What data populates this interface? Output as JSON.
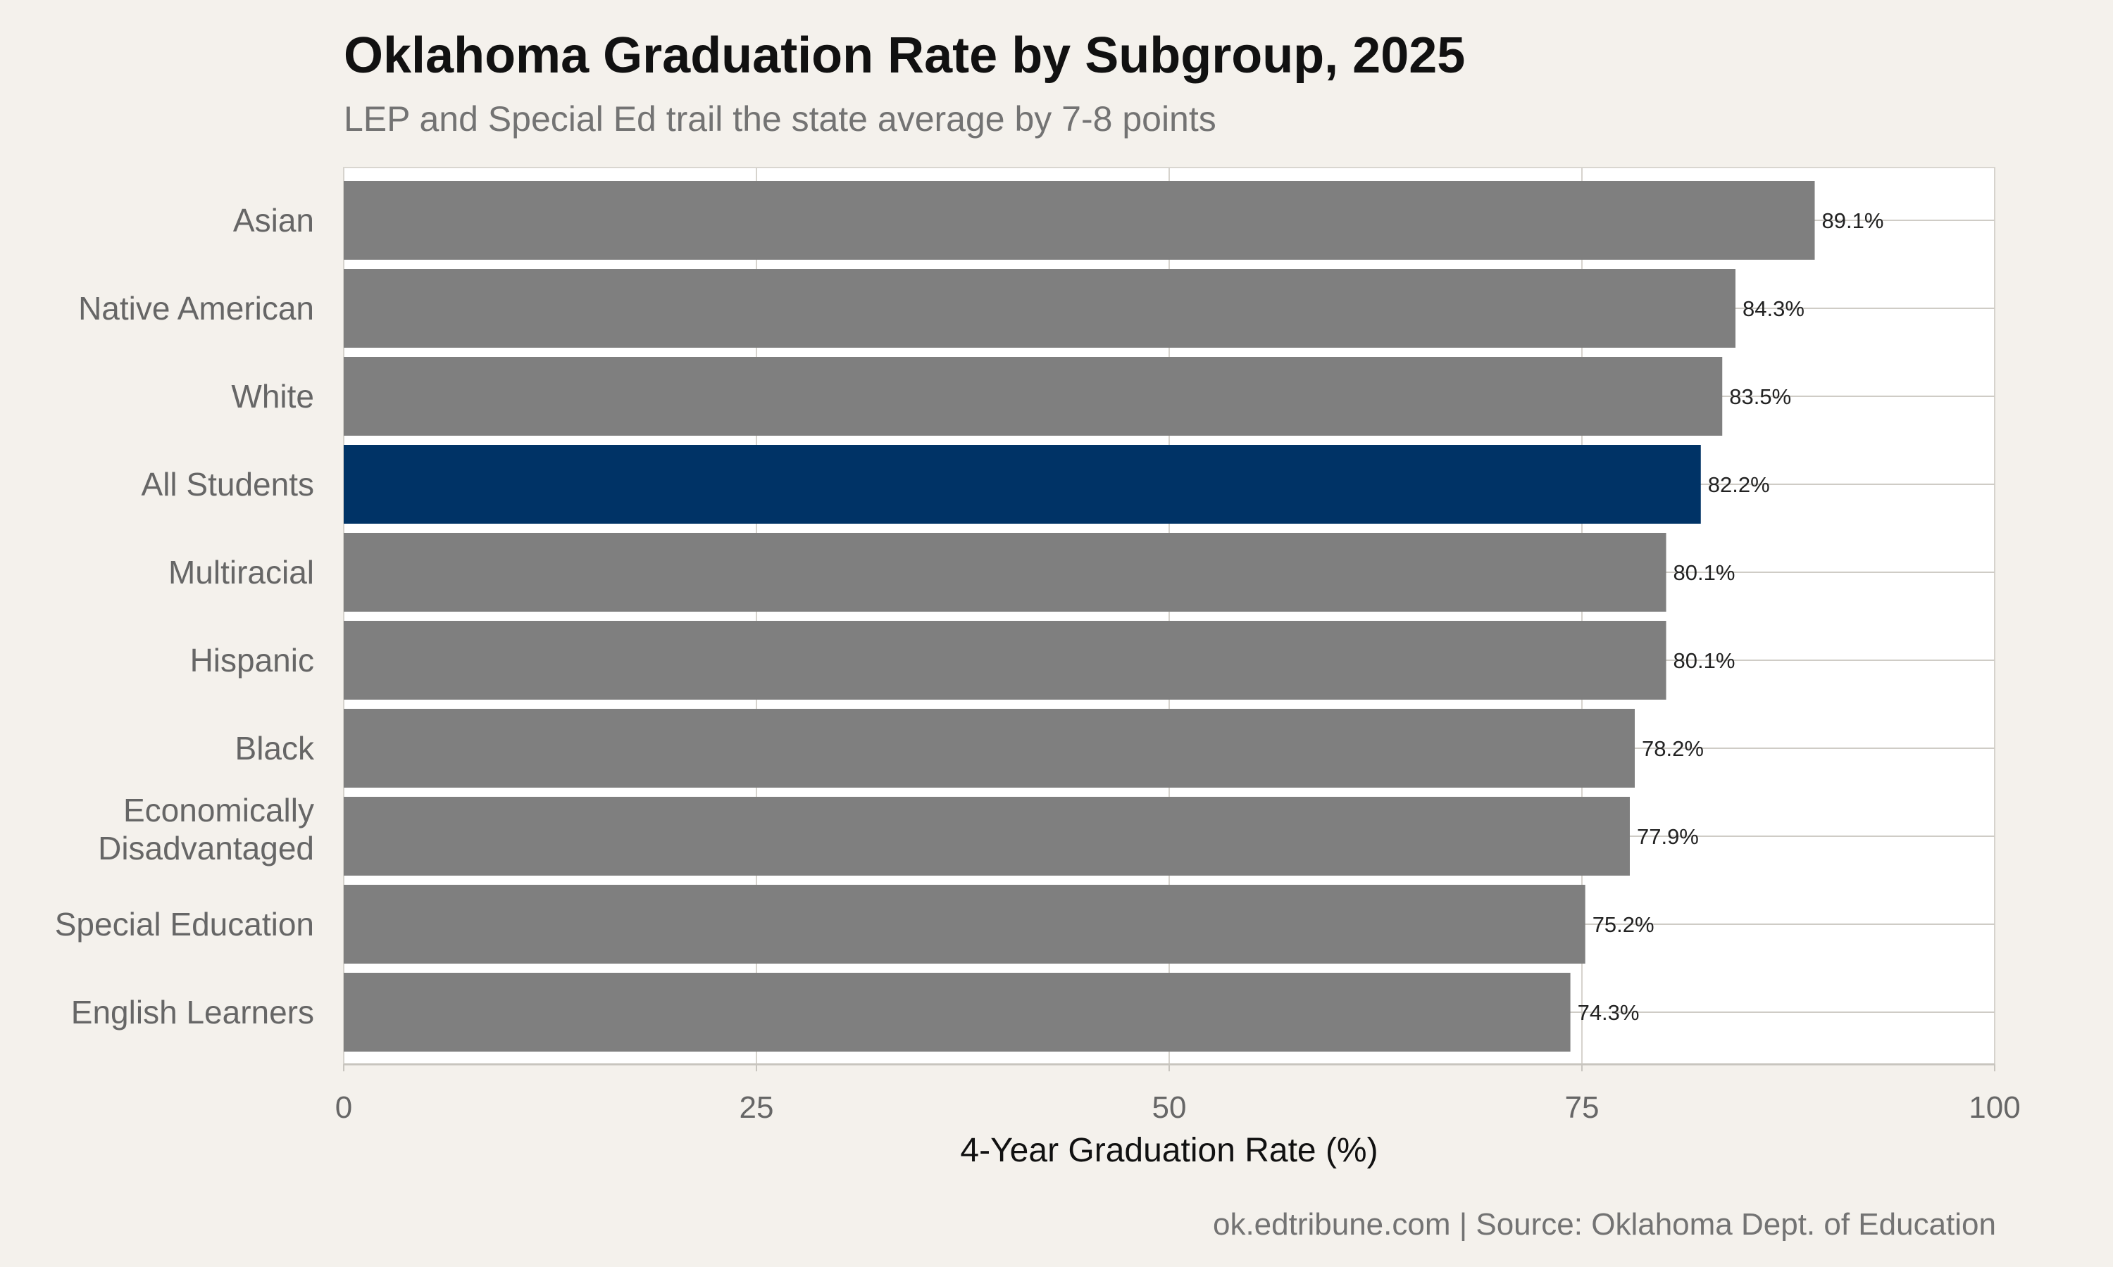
{
  "chart_data": {
    "type": "bar",
    "orientation": "horizontal",
    "title": "Oklahoma Graduation Rate by Subgroup, 2025",
    "subtitle": "LEP and Special Ed trail the state average by 7-8 points",
    "xlabel": "4-Year Graduation Rate (%)",
    "ylabel": "",
    "xlim": [
      0,
      100
    ],
    "xticks": [
      "0",
      "25",
      "50",
      "75",
      "100"
    ],
    "categories": [
      "Asian",
      "Native American",
      "White",
      "All Students",
      "Multiracial",
      "Hispanic",
      "Black",
      "Economically Disadvantaged",
      "Special Education",
      "English Learners"
    ],
    "values": [
      89.1,
      84.3,
      83.5,
      82.2,
      80.1,
      80.1,
      78.2,
      77.9,
      75.2,
      74.3
    ],
    "labels": [
      "89.1%",
      "84.3%",
      "83.5%",
      "82.2%",
      "80.1%",
      "80.1%",
      "78.2%",
      "77.9%",
      "75.2%",
      "74.3%"
    ],
    "highlight": "All Students",
    "colors": {
      "default": "#7f7f7f",
      "highlight": "#003366"
    },
    "grid": true,
    "legend": "none"
  },
  "source": "ok.edtribune.com | Source: Oklahoma Dept. of Education"
}
